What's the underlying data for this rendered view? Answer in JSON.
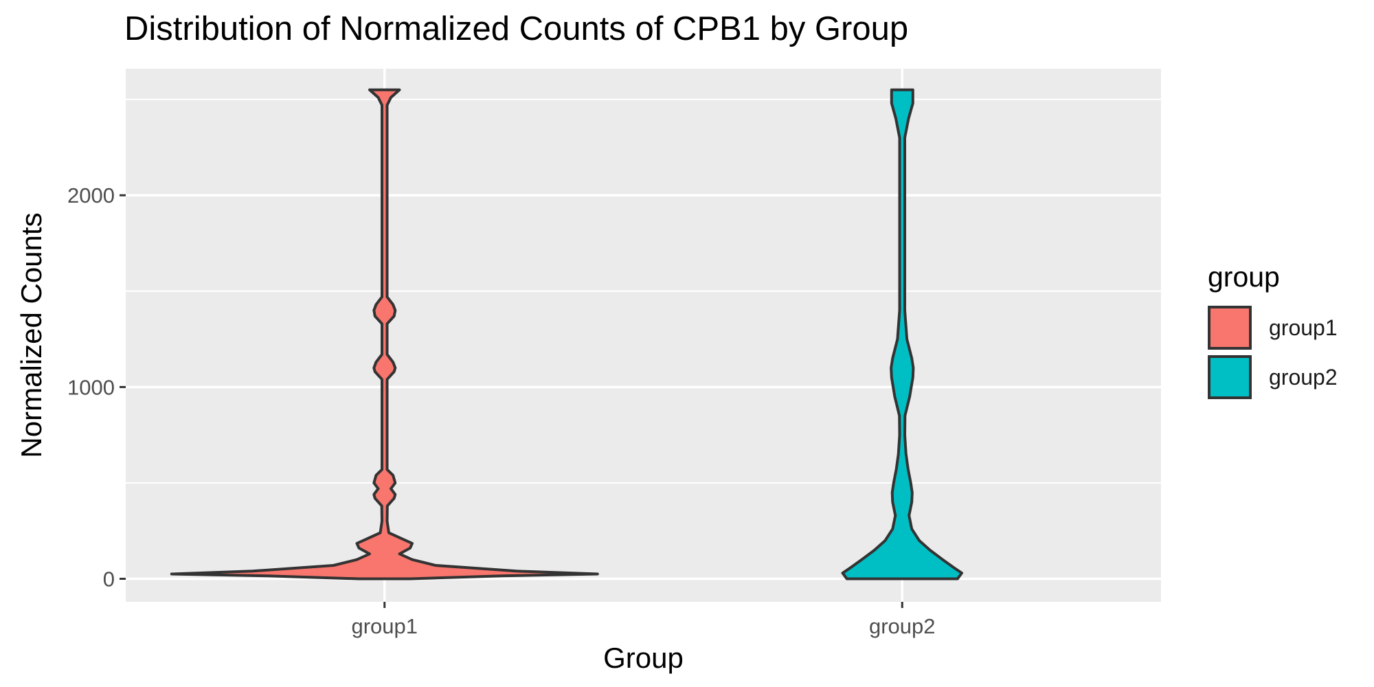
{
  "chart_data": {
    "type": "violin",
    "title": "Distribution of Normalized Counts of CPB1 by Group",
    "xlabel": "Group",
    "ylabel": "Normalized Counts",
    "categories": [
      "group1",
      "group2"
    ],
    "ylim": [
      -120,
      2660
    ],
    "yticks": [
      0,
      1000,
      2000
    ],
    "minor_yticks": [
      500,
      1500,
      2500
    ],
    "grid": true,
    "legend": {
      "title": "group",
      "position": "right",
      "entries": [
        "group1",
        "group2"
      ]
    },
    "colors": {
      "group1": "#F8766D",
      "group2": "#00BFC4",
      "outline": "#333333",
      "panel": "#EBEBEB",
      "grid": "#FFFFFF"
    },
    "series": [
      {
        "name": "group1",
        "category": "group1",
        "y_range": [
          0,
          2550
        ],
        "density_profile": [
          [
            0,
            0.12
          ],
          [
            15,
            0.55
          ],
          [
            25,
            1.0
          ],
          [
            40,
            0.62
          ],
          [
            70,
            0.24
          ],
          [
            100,
            0.13
          ],
          [
            130,
            0.07
          ],
          [
            160,
            0.12
          ],
          [
            185,
            0.13
          ],
          [
            210,
            0.08
          ],
          [
            240,
            0.02
          ],
          [
            300,
            0.012
          ],
          [
            380,
            0.013
          ],
          [
            420,
            0.045
          ],
          [
            440,
            0.05
          ],
          [
            470,
            0.03
          ],
          [
            500,
            0.05
          ],
          [
            540,
            0.04
          ],
          [
            570,
            0.012
          ],
          [
            700,
            0.012
          ],
          [
            1040,
            0.012
          ],
          [
            1080,
            0.045
          ],
          [
            1100,
            0.05
          ],
          [
            1130,
            0.04
          ],
          [
            1170,
            0.012
          ],
          [
            1330,
            0.012
          ],
          [
            1370,
            0.045
          ],
          [
            1400,
            0.05
          ],
          [
            1430,
            0.04
          ],
          [
            1470,
            0.012
          ],
          [
            2000,
            0.012
          ],
          [
            2470,
            0.012
          ],
          [
            2510,
            0.03
          ],
          [
            2550,
            0.07
          ]
        ]
      },
      {
        "name": "group2",
        "category": "group2",
        "y_range": [
          0,
          2550
        ],
        "density_profile": [
          [
            0,
            0.26
          ],
          [
            30,
            0.28
          ],
          [
            60,
            0.24
          ],
          [
            100,
            0.19
          ],
          [
            150,
            0.13
          ],
          [
            200,
            0.08
          ],
          [
            260,
            0.045
          ],
          [
            330,
            0.032
          ],
          [
            400,
            0.045
          ],
          [
            450,
            0.047
          ],
          [
            500,
            0.04
          ],
          [
            570,
            0.028
          ],
          [
            650,
            0.018
          ],
          [
            750,
            0.012
          ],
          [
            850,
            0.013
          ],
          [
            950,
            0.035
          ],
          [
            1050,
            0.05
          ],
          [
            1100,
            0.052
          ],
          [
            1150,
            0.045
          ],
          [
            1250,
            0.022
          ],
          [
            1400,
            0.012
          ],
          [
            2000,
            0.012
          ],
          [
            2300,
            0.012
          ],
          [
            2400,
            0.03
          ],
          [
            2480,
            0.05
          ],
          [
            2550,
            0.05
          ]
        ]
      }
    ]
  }
}
